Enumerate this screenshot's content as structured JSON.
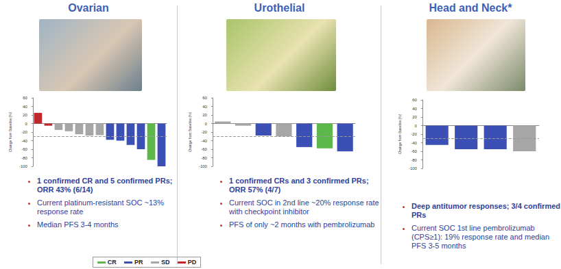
{
  "chart_data": [
    {
      "type": "bar",
      "title": "Ovarian",
      "ylabel": "Change from Baseline (%)",
      "categories": [
        null,
        null,
        null,
        null,
        null,
        null,
        null,
        null,
        null,
        null,
        null,
        null,
        null
      ],
      "values": [
        25,
        -5,
        -15,
        -18,
        -25,
        -28,
        -27,
        -38,
        -40,
        -50,
        -60,
        -85,
        -100
      ],
      "colors": [
        "#c0272d",
        "#c0272d",
        "#a6a6a6",
        "#a6a6a6",
        "#a6a6a6",
        "#a6a6a6",
        "#a6a6a6",
        "#3b4fb5",
        "#3b4fb5",
        "#3b4fb5",
        "#3b4fb5",
        "#5cb84a",
        "#3b4fb5"
      ],
      "ylim": [
        -100,
        60
      ],
      "yticks": [
        -100,
        -80,
        -60,
        -40,
        -20,
        0,
        20,
        40,
        60
      ],
      "reference_line": -30,
      "grid": false,
      "tick_labels": "y"
    },
    {
      "type": "bar",
      "title": "Urothelial",
      "ylabel": "Change from Baseline (%)",
      "categories": [
        null,
        null,
        null,
        null,
        null,
        null,
        null
      ],
      "values": [
        5,
        -5,
        -28,
        -30,
        -55,
        -58,
        -65
      ],
      "colors": [
        "#a6a6a6",
        "#a6a6a6",
        "#3b4fb5",
        "#a6a6a6",
        "#3b4fb5",
        "#5cb84a",
        "#3b4fb5"
      ],
      "ylim": [
        -100,
        60
      ],
      "yticks": [
        -100,
        -80,
        -60,
        -40,
        -20,
        0,
        20,
        40,
        60
      ],
      "reference_line": -30,
      "grid": false,
      "tick_labels": "y"
    },
    {
      "type": "bar",
      "title": "Head and Neck*",
      "ylabel": "Change from Baseline (%)",
      "categories": [
        null,
        null,
        null,
        null
      ],
      "values": [
        -45,
        -55,
        -55,
        -60
      ],
      "colors": [
        "#3b4fb5",
        "#3b4fb5",
        "#3b4fb5",
        "#a6a6a6"
      ],
      "ylim": [
        -100,
        60
      ],
      "yticks": [
        -100,
        -80,
        -60,
        -40,
        -20,
        0,
        20,
        40,
        60
      ],
      "reference_line": -30,
      "grid": false,
      "tick_labels": "y"
    }
  ],
  "bullets": [
    [
      "1 confirmed CR and 5 confirmed PRs; ORR 43% (6/14)",
      "Current platinum-resistant SOC ~13% response rate",
      "Median PFS 3-4 months"
    ],
    [
      "1 confirmed CRs and 3 confirmed PRs; ORR 57% (4/7)",
      "Current SOC in 2nd line ~20% response rate with checkpoint inhibitor",
      "PFS of only ~2 months with pembrolizumab"
    ],
    [
      "Deep antitumor responses; 3/4 confirmed PRs",
      "Current SOC 1st line pembrolizumab (CPS≥1): 19% response rate and median PFS 3-5 months"
    ]
  ],
  "key": [
    {
      "name": "CR",
      "color": "#5cb84a"
    },
    {
      "name": "PR",
      "color": "#3b4fb5"
    },
    {
      "name": "SD",
      "color": "#a6a6a6"
    },
    {
      "name": "PD",
      "color": "#c0272d"
    }
  ]
}
